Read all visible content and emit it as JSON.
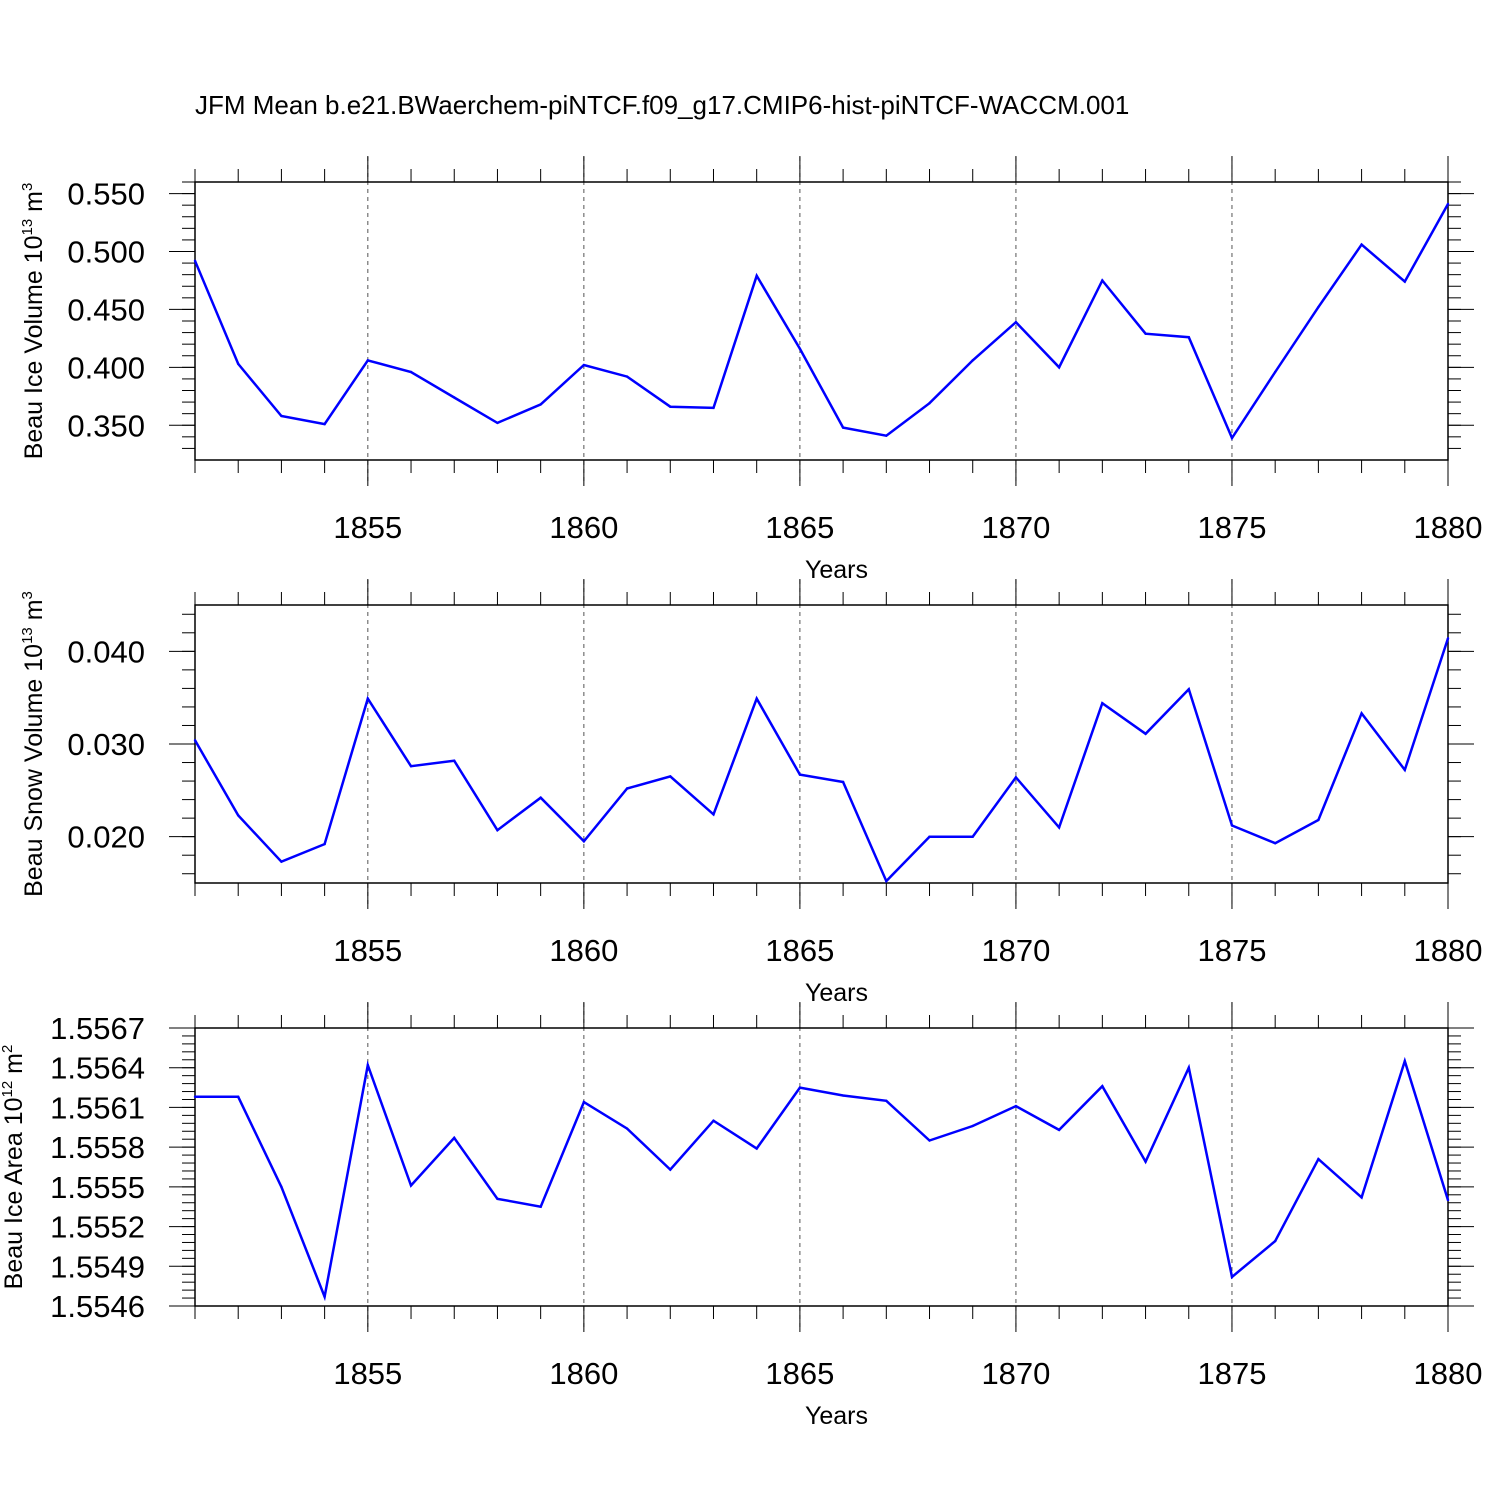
{
  "title": "JFM Mean b.e21.BWaerchem-piNTCF.f09_g17.CMIP6-hist-piNTCF-WACCM.001",
  "colors": {
    "line": "#0000ff",
    "axis": "#000000",
    "grid": "#555555"
  },
  "chart_data": [
    {
      "type": "line",
      "ylabel_text": "Beau Ice Volume 10",
      "ylabel_exp": "13",
      "ylabel_unit": " m",
      "ylabel_unit_exp": "3",
      "xlabel": "Years",
      "xlim": [
        1851,
        1880
      ],
      "ylim": [
        0.32,
        0.56
      ],
      "ytick_values": [
        0.35,
        0.4,
        0.45,
        0.5,
        0.55
      ],
      "ytick_labels": [
        "0.350",
        "0.400",
        "0.450",
        "0.500",
        "0.550"
      ],
      "xtick_values": [
        1855,
        1860,
        1865,
        1870,
        1875,
        1880
      ],
      "xtick_labels": [
        "1855",
        "1860",
        "1865",
        "1870",
        "1875",
        "1880"
      ],
      "x": [
        1851,
        1852,
        1853,
        1854,
        1855,
        1856,
        1857,
        1858,
        1859,
        1860,
        1861,
        1862,
        1863,
        1864,
        1865,
        1866,
        1867,
        1868,
        1869,
        1870,
        1871,
        1872,
        1873,
        1874,
        1875,
        1876,
        1877,
        1878,
        1879,
        1880
      ],
      "values": [
        0.492,
        0.403,
        0.358,
        0.351,
        0.406,
        0.396,
        0.374,
        0.352,
        0.368,
        0.402,
        0.392,
        0.366,
        0.365,
        0.479,
        0.416,
        0.348,
        0.341,
        0.369,
        0.406,
        0.439,
        0.4,
        0.475,
        0.429,
        0.426,
        0.339,
        0.396,
        0.452,
        0.506,
        0.474,
        0.541
      ]
    },
    {
      "type": "line",
      "ylabel_text": "Beau Snow Volume 10",
      "ylabel_exp": "13",
      "ylabel_unit": " m",
      "ylabel_unit_exp": "3",
      "xlabel": "Years",
      "xlim": [
        1851,
        1880
      ],
      "ylim": [
        0.015,
        0.045
      ],
      "ytick_values": [
        0.02,
        0.03,
        0.04
      ],
      "ytick_labels": [
        "0.020",
        "0.030",
        "0.040"
      ],
      "xtick_values": [
        1855,
        1860,
        1865,
        1870,
        1875,
        1880
      ],
      "xtick_labels": [
        "1855",
        "1860",
        "1865",
        "1870",
        "1875",
        "1880"
      ],
      "x": [
        1851,
        1852,
        1853,
        1854,
        1855,
        1856,
        1857,
        1858,
        1859,
        1860,
        1861,
        1862,
        1863,
        1864,
        1865,
        1866,
        1867,
        1868,
        1869,
        1870,
        1871,
        1872,
        1873,
        1874,
        1875,
        1876,
        1877,
        1878,
        1879,
        1880
      ],
      "values": [
        0.0304,
        0.0223,
        0.0173,
        0.0192,
        0.0349,
        0.0276,
        0.0282,
        0.0207,
        0.0242,
        0.0195,
        0.0252,
        0.0265,
        0.0224,
        0.0349,
        0.0267,
        0.0259,
        0.0152,
        0.02,
        0.02,
        0.0264,
        0.021,
        0.0344,
        0.0311,
        0.0359,
        0.0212,
        0.0193,
        0.0218,
        0.0333,
        0.0272,
        0.0414
      ]
    },
    {
      "type": "line",
      "ylabel_text": "Beau Ice Area 10",
      "ylabel_exp": "12",
      "ylabel_unit": " m",
      "ylabel_unit_exp": "2",
      "xlabel": "Years",
      "xlim": [
        1851,
        1880
      ],
      "ylim": [
        1.5546,
        1.5567
      ],
      "ytick_values": [
        1.5546,
        1.5549,
        1.5552,
        1.5555,
        1.5558,
        1.5561,
        1.5564,
        1.5567
      ],
      "ytick_labels": [
        "1.5546",
        "1.5549",
        "1.5552",
        "1.5555",
        "1.5558",
        "1.5561",
        "1.5564",
        "1.5567"
      ],
      "xtick_values": [
        1855,
        1860,
        1865,
        1870,
        1875,
        1880
      ],
      "xtick_labels": [
        "1855",
        "1860",
        "1865",
        "1870",
        "1875",
        "1880"
      ],
      "x": [
        1851,
        1852,
        1853,
        1854,
        1855,
        1856,
        1857,
        1858,
        1859,
        1860,
        1861,
        1862,
        1863,
        1864,
        1865,
        1866,
        1867,
        1868,
        1869,
        1870,
        1871,
        1872,
        1873,
        1874,
        1875,
        1876,
        1877,
        1878,
        1879,
        1880
      ],
      "values": [
        1.55618,
        1.55618,
        1.5555,
        1.55467,
        1.55642,
        1.55551,
        1.55587,
        1.55541,
        1.55535,
        1.55614,
        1.55594,
        1.55563,
        1.556,
        1.55579,
        1.55625,
        1.55619,
        1.55615,
        1.55585,
        1.55596,
        1.55611,
        1.55593,
        1.55626,
        1.55569,
        1.5564,
        1.55482,
        1.55509,
        1.55571,
        1.55542,
        1.55645,
        1.5554
      ]
    }
  ]
}
